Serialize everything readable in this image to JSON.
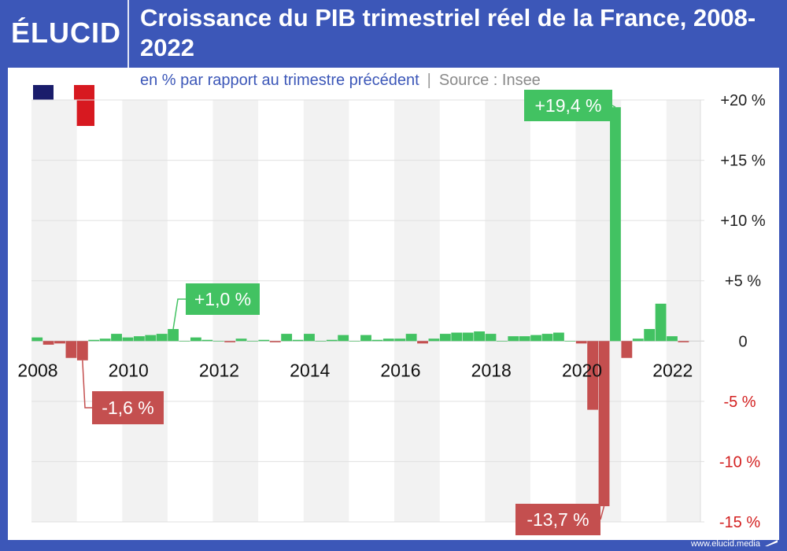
{
  "brand": {
    "logo_text": "ÉLUCID",
    "footer_text": "www.elucid.media"
  },
  "flag": {
    "name": "france-flag",
    "colors": [
      "#1a1d6b",
      "#ffffff",
      "#d71920"
    ]
  },
  "colors": {
    "positive": "#42c262",
    "negative": "#c44f4f",
    "negative_tick": "#d32020",
    "accent": "#3c57b8"
  },
  "chart_data": {
    "type": "bar",
    "title": "Croissance du PIB trimestriel réel de la France, 2008-2022",
    "subtitle": "en % par rapport au trimestre précédent",
    "separator": "|",
    "source": "Source : Insee",
    "xlabel": "",
    "ylabel": "",
    "ylim": [
      -15,
      20
    ],
    "xlim": [
      2008,
      2022.75
    ],
    "grid": true,
    "y_ticks": [
      {
        "value": 20,
        "label": "+20 %"
      },
      {
        "value": 15,
        "label": "+15 %"
      },
      {
        "value": 10,
        "label": "+10 %"
      },
      {
        "value": 5,
        "label": "+5 %"
      },
      {
        "value": 0,
        "label": "0"
      },
      {
        "value": -5,
        "label": "-5 %"
      },
      {
        "value": -10,
        "label": "-10 %"
      },
      {
        "value": -15,
        "label": "-15 %"
      }
    ],
    "x_ticks": [
      {
        "value": 2008,
        "label": "2008"
      },
      {
        "value": 2010,
        "label": "2010"
      },
      {
        "value": 2012,
        "label": "2012"
      },
      {
        "value": 2014,
        "label": "2014"
      },
      {
        "value": 2016,
        "label": "2016"
      },
      {
        "value": 2018,
        "label": "2018"
      },
      {
        "value": 2020,
        "label": "2020"
      },
      {
        "value": 2022,
        "label": "2022"
      }
    ],
    "start_year": 2008,
    "values": [
      0.3,
      -0.3,
      -0.2,
      -1.4,
      -1.6,
      0.1,
      0.2,
      0.6,
      0.3,
      0.4,
      0.5,
      0.6,
      1.0,
      0.0,
      0.3,
      0.1,
      0.0,
      -0.1,
      0.2,
      0.0,
      0.1,
      -0.1,
      0.6,
      0.1,
      0.6,
      0.0,
      0.1,
      0.5,
      0.0,
      0.5,
      0.1,
      0.2,
      0.2,
      0.6,
      -0.2,
      0.2,
      0.6,
      0.7,
      0.7,
      0.8,
      0.6,
      0.0,
      0.4,
      0.4,
      0.5,
      0.6,
      0.7,
      0.0,
      -0.2,
      -5.7,
      -13.7,
      19.4,
      -1.4,
      0.2,
      1.0,
      3.1,
      0.4,
      -0.1
    ],
    "annotations": [
      {
        "text": "+1,0 %",
        "index": 12,
        "value": 1.0,
        "color": "positive"
      },
      {
        "text": "-1,6 %",
        "index": 4,
        "value": -1.6,
        "color": "negative"
      },
      {
        "text": "+19,4 %",
        "index": 51,
        "value": 19.4,
        "color": "positive"
      },
      {
        "text": "-13,7 %",
        "index": 50,
        "value": -13.7,
        "color": "negative"
      }
    ]
  }
}
